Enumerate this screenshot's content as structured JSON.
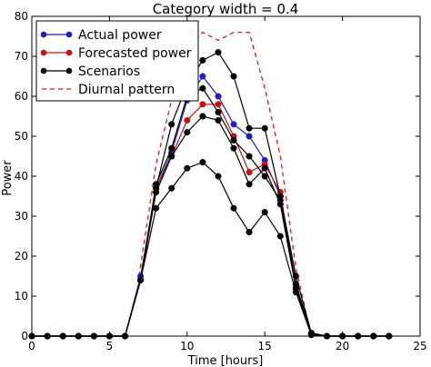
{
  "chart_data": {
    "type": "line",
    "title": "Category width = 0.4",
    "xlabel": "Time [hours]",
    "ylabel": "Power",
    "xlim": [
      0,
      25
    ],
    "ylim": [
      0,
      80
    ],
    "xticks": [
      0,
      5,
      10,
      15,
      20,
      25
    ],
    "yticks": [
      0,
      10,
      20,
      30,
      40,
      50,
      60,
      70,
      80
    ],
    "xtick_labels": [
      "0",
      "5",
      "10",
      "15",
      "20",
      "25"
    ],
    "ytick_labels": [
      "0",
      "10",
      "20",
      "30",
      "40",
      "50",
      "60",
      "70",
      "80"
    ],
    "grid": false,
    "legend_position": "top-left",
    "x": [
      0,
      1,
      2,
      3,
      4,
      5,
      6,
      7,
      8,
      9,
      10,
      11,
      12,
      13,
      14,
      15,
      16,
      17,
      18,
      19,
      20,
      21,
      22,
      23
    ],
    "series": [
      {
        "name": "Actual power",
        "color": "#1f1fbf",
        "style": "solid-marker",
        "values": [
          0,
          0,
          0,
          0,
          0,
          0,
          0,
          15,
          37,
          46,
          59,
          65,
          60,
          53,
          50,
          44,
          35,
          13,
          0.5,
          0,
          0,
          0,
          0,
          0
        ]
      },
      {
        "name": "Forecasted power",
        "color": "#cc1111",
        "style": "solid-marker",
        "values": [
          0,
          0,
          0,
          0,
          0,
          0,
          0,
          14,
          37,
          45,
          54,
          58,
          58,
          50,
          41,
          43,
          36,
          12,
          0.5,
          0,
          0,
          0,
          0,
          0
        ]
      }
    ],
    "scenarios": {
      "name": "Scenarios",
      "color": "#000000",
      "style": "solid-marker",
      "lines": [
        [
          0,
          0,
          0,
          0,
          0,
          0,
          0,
          14,
          37,
          53,
          63,
          69,
          71,
          65,
          52,
          52,
          35,
          15,
          0.8,
          0,
          0,
          0,
          0,
          0
        ],
        [
          0,
          0,
          0,
          0,
          0,
          0,
          0,
          14,
          38,
          47,
          60,
          62,
          56,
          49,
          45,
          40,
          34,
          13,
          0.6,
          0,
          0,
          0,
          0,
          0
        ],
        [
          0,
          0,
          0,
          0,
          0,
          0,
          0,
          14,
          36,
          45,
          51,
          55,
          54,
          47,
          38,
          42,
          33,
          12,
          0.5,
          0,
          0,
          0,
          0,
          0
        ],
        [
          0,
          0,
          0,
          0,
          0,
          0,
          0,
          14,
          32,
          37,
          42,
          43.5,
          40,
          32,
          26,
          31,
          25,
          11,
          0.3,
          0,
          0,
          0,
          0,
          0
        ]
      ]
    },
    "diurnal": {
      "name": "Diurnal pattern",
      "color": "#e31a1c",
      "style": "dashed",
      "x": [
        6.9,
        8,
        9,
        10,
        11,
        12,
        13,
        14,
        15,
        16,
        17,
        18
      ],
      "values": [
        15,
        43,
        59,
        72,
        76,
        74,
        76,
        76,
        62,
        45,
        17,
        0
      ]
    }
  }
}
